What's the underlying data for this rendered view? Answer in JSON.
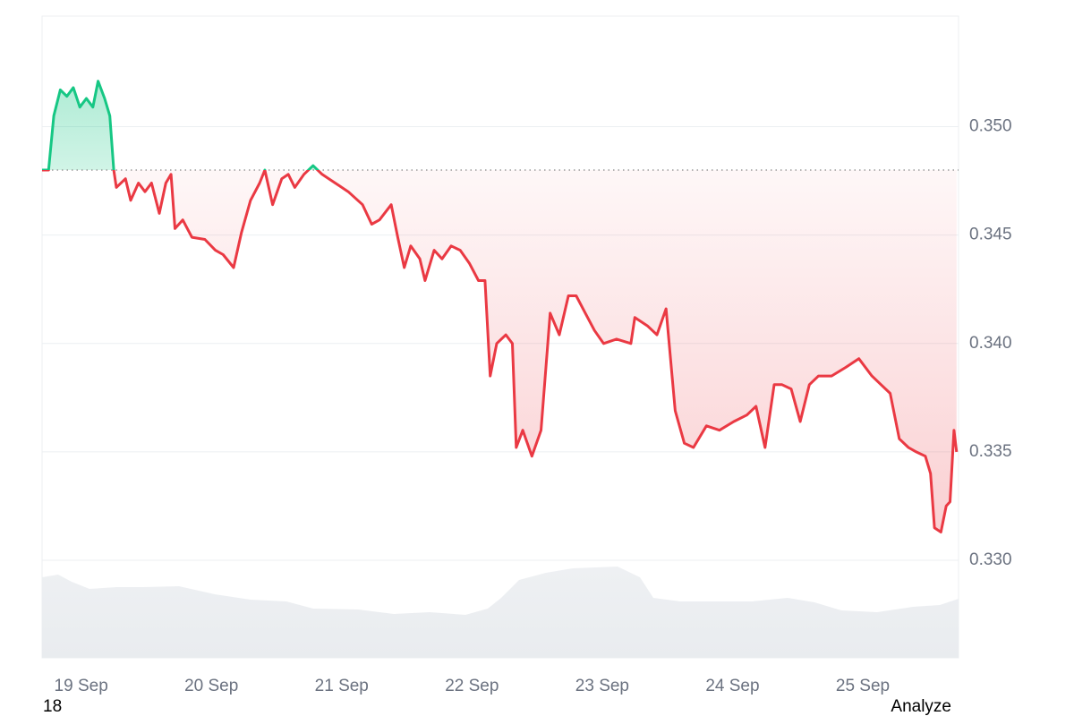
{
  "chart_data": {
    "type": "line",
    "x": [
      18.7,
      18.75,
      18.79,
      18.84,
      18.89,
      18.94,
      18.99,
      19.04,
      19.09,
      19.13,
      19.18,
      19.22,
      19.25,
      19.27,
      19.34,
      19.38,
      19.44,
      19.49,
      19.54,
      19.6,
      19.65,
      19.69,
      19.72,
      19.78,
      19.85,
      19.95,
      20.03,
      20.09,
      20.17,
      20.23,
      20.3,
      20.37,
      20.41,
      20.47,
      20.54,
      20.59,
      20.64,
      20.71,
      20.78,
      20.85,
      20.95,
      21.05,
      21.16,
      21.23,
      21.29,
      21.38,
      21.43,
      21.48,
      21.53,
      21.6,
      21.64,
      21.71,
      21.77,
      21.84,
      21.91,
      21.98,
      22.05,
      22.1,
      22.14,
      22.19,
      22.26,
      22.31,
      22.34,
      22.39,
      22.46,
      22.53,
      22.6,
      22.67,
      22.74,
      22.8,
      22.87,
      22.94,
      23.01,
      23.11,
      23.22,
      23.25,
      23.35,
      23.42,
      23.49,
      23.56,
      23.63,
      23.7,
      23.8,
      23.9,
      24.01,
      24.11,
      24.18,
      24.25,
      24.32,
      24.38,
      24.45,
      24.52,
      24.59,
      24.66,
      24.76,
      24.87,
      24.97,
      25.07,
      25.14,
      25.21,
      25.28,
      25.35,
      25.41,
      25.48,
      25.52,
      25.55,
      25.6,
      25.64,
      25.67,
      25.7,
      25.72
    ],
    "values": [
      0.348,
      0.348,
      0.3505,
      0.3517,
      0.3514,
      0.3518,
      0.3509,
      0.3513,
      0.3509,
      0.3521,
      0.3513,
      0.3505,
      0.348,
      0.3472,
      0.3476,
      0.3466,
      0.3474,
      0.347,
      0.3474,
      0.346,
      0.3474,
      0.3478,
      0.3453,
      0.3457,
      0.3449,
      0.3448,
      0.3443,
      0.3441,
      0.3435,
      0.3451,
      0.3466,
      0.3474,
      0.348,
      0.3464,
      0.3476,
      0.3478,
      0.3472,
      0.3478,
      0.3482,
      0.3478,
      0.3474,
      0.347,
      0.3464,
      0.3455,
      0.3457,
      0.3464,
      0.3449,
      0.3435,
      0.3445,
      0.3439,
      0.3429,
      0.3443,
      0.3439,
      0.3445,
      0.3443,
      0.3437,
      0.3429,
      0.3429,
      0.3385,
      0.34,
      0.3404,
      0.34,
      0.3352,
      0.336,
      0.3348,
      0.336,
      0.3414,
      0.3404,
      0.3422,
      0.3422,
      0.3414,
      0.3406,
      0.34,
      0.3402,
      0.34,
      0.3412,
      0.3408,
      0.3404,
      0.3416,
      0.3369,
      0.3354,
      0.3352,
      0.3362,
      0.336,
      0.3364,
      0.3367,
      0.3371,
      0.3352,
      0.3381,
      0.3381,
      0.3379,
      0.3364,
      0.3381,
      0.3385,
      0.3385,
      0.3389,
      0.3393,
      0.3385,
      0.3381,
      0.3377,
      0.3356,
      0.3352,
      0.335,
      0.3348,
      0.334,
      0.3315,
      0.3313,
      0.3325,
      0.3327,
      0.336,
      0.335
    ],
    "baseline": 0.348,
    "up_color": "#16c784",
    "down_color": "#ea3943",
    "xlim": [
      18.7,
      25.735
    ],
    "xticks": [
      {
        "value": 19,
        "label": "19 Sep"
      },
      {
        "value": 20,
        "label": "20 Sep"
      },
      {
        "value": 21,
        "label": "21 Sep"
      },
      {
        "value": 22,
        "label": "22 Sep"
      },
      {
        "value": 23,
        "label": "23 Sep"
      },
      {
        "value": 24,
        "label": "24 Sep"
      },
      {
        "value": 25,
        "label": "25 Sep"
      }
    ],
    "ylim": [
      0.3255,
      0.3551
    ],
    "yticks": [
      {
        "value": 0.33,
        "label": "0.330"
      },
      0.335,
      {
        "value": 0.34,
        "label": "0.340"
      },
      0.345,
      {
        "value": 0.35,
        "label": "0.350"
      }
    ],
    "grid": true
  },
  "footer": [
    "18",
    "Analyze"
  ]
}
